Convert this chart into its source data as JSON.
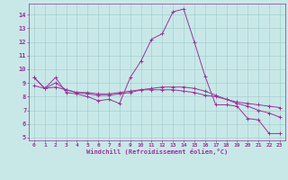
{
  "background_color": "#c8e8e8",
  "grid_color": "#a0c8c8",
  "line_color": "#993399",
  "xlabel": "Windchill (Refroidissement éolien,°C)",
  "xlim": [
    -0.5,
    23.5
  ],
  "ylim": [
    4.8,
    14.8
  ],
  "yticks": [
    5,
    6,
    7,
    8,
    9,
    10,
    11,
    12,
    13,
    14
  ],
  "xticks": [
    0,
    1,
    2,
    3,
    4,
    5,
    6,
    7,
    8,
    9,
    10,
    11,
    12,
    13,
    14,
    15,
    16,
    17,
    18,
    19,
    20,
    21,
    22,
    23
  ],
  "line1_x": [
    0,
    1,
    2,
    3,
    4,
    5,
    6,
    7,
    8,
    9,
    10,
    11,
    12,
    13,
    14,
    15,
    16,
    17,
    18,
    19,
    20,
    21,
    22,
    23
  ],
  "line1_y": [
    9.4,
    8.6,
    9.4,
    8.3,
    8.2,
    8.0,
    7.7,
    7.8,
    7.5,
    9.4,
    10.6,
    12.2,
    12.6,
    14.2,
    14.4,
    12.0,
    9.5,
    7.4,
    7.4,
    7.3,
    6.4,
    6.3,
    5.3,
    5.3
  ],
  "line2_x": [
    0,
    1,
    2,
    3,
    4,
    5,
    6,
    7,
    8,
    9,
    10,
    11,
    12,
    13,
    14,
    15,
    16,
    17,
    18,
    19,
    20,
    21,
    22,
    23
  ],
  "line2_y": [
    8.8,
    8.6,
    8.7,
    8.5,
    8.3,
    8.3,
    8.2,
    8.2,
    8.3,
    8.4,
    8.5,
    8.5,
    8.5,
    8.5,
    8.4,
    8.3,
    8.1,
    8.0,
    7.8,
    7.6,
    7.5,
    7.4,
    7.3,
    7.2
  ],
  "line3_x": [
    0,
    1,
    2,
    3,
    4,
    5,
    6,
    7,
    8,
    9,
    10,
    11,
    12,
    13,
    14,
    15,
    16,
    17,
    18,
    19,
    20,
    21,
    22,
    23
  ],
  "line3_y": [
    9.4,
    8.6,
    9.0,
    8.5,
    8.3,
    8.2,
    8.1,
    8.1,
    8.2,
    8.3,
    8.5,
    8.6,
    8.7,
    8.7,
    8.7,
    8.6,
    8.4,
    8.1,
    7.8,
    7.5,
    7.3,
    7.0,
    6.8,
    6.5
  ]
}
